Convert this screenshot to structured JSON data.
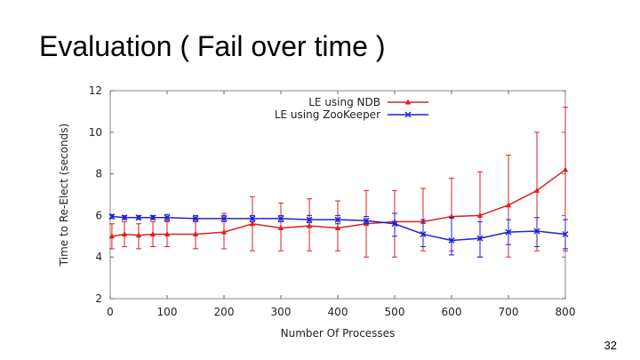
{
  "slide": {
    "title": "Evaluation ( Fail over time )",
    "page_number": "32"
  },
  "chart_data": {
    "type": "line",
    "title": "",
    "xlabel": "Number Of Processes",
    "ylabel": "Time to Re-Elect (seconds)",
    "xlim": [
      0,
      800
    ],
    "ylim": [
      2,
      12
    ],
    "xticks": [
      0,
      100,
      200,
      300,
      400,
      500,
      600,
      700,
      800
    ],
    "yticks": [
      2,
      4,
      6,
      8,
      10,
      12
    ],
    "grid": false,
    "legend_position": "top-right",
    "series": [
      {
        "name": "LE using NDB",
        "color": "#e02020",
        "marker": "triangle",
        "x": [
          3,
          25,
          50,
          75,
          100,
          150,
          200,
          250,
          300,
          350,
          400,
          450,
          500,
          550,
          600,
          650,
          700,
          750,
          800
        ],
        "y": [
          5.0,
          5.1,
          5.05,
          5.1,
          5.1,
          5.1,
          5.2,
          5.6,
          5.4,
          5.5,
          5.4,
          5.6,
          5.7,
          5.7,
          5.95,
          6.0,
          6.5,
          7.2,
          8.2
        ],
        "err_low": [
          4.4,
          4.5,
          4.4,
          4.5,
          4.5,
          4.4,
          4.4,
          4.3,
          4.3,
          4.3,
          4.3,
          4.0,
          4.0,
          4.3,
          4.3,
          4.0,
          4.0,
          4.3,
          4.3
        ],
        "err_high": [
          5.6,
          5.7,
          5.6,
          5.7,
          5.7,
          5.8,
          6.1,
          6.9,
          6.6,
          6.8,
          6.7,
          7.2,
          7.2,
          7.3,
          7.8,
          8.1,
          8.9,
          10.0,
          11.2
        ]
      },
      {
        "name": "LE using ZooKeeper",
        "color": "#2020d0",
        "marker": "x",
        "x": [
          3,
          25,
          50,
          75,
          100,
          150,
          200,
          250,
          300,
          350,
          400,
          450,
          500,
          550,
          600,
          650,
          700,
          750,
          800
        ],
        "y": [
          5.95,
          5.9,
          5.9,
          5.9,
          5.9,
          5.85,
          5.85,
          5.85,
          5.85,
          5.8,
          5.8,
          5.75,
          5.6,
          5.1,
          4.8,
          4.9,
          5.2,
          5.25,
          5.1
        ],
        "err_low": [
          5.85,
          5.8,
          5.8,
          5.8,
          5.75,
          5.7,
          5.7,
          5.7,
          5.7,
          5.65,
          5.6,
          5.6,
          5.0,
          4.5,
          4.1,
          4.0,
          4.6,
          4.5,
          4.4
        ],
        "err_high": [
          6.05,
          6.0,
          6.0,
          6.0,
          6.05,
          6.0,
          6.0,
          6.0,
          6.0,
          6.0,
          6.0,
          5.95,
          6.1,
          5.8,
          5.9,
          5.7,
          5.8,
          5.9,
          5.8
        ]
      }
    ]
  }
}
